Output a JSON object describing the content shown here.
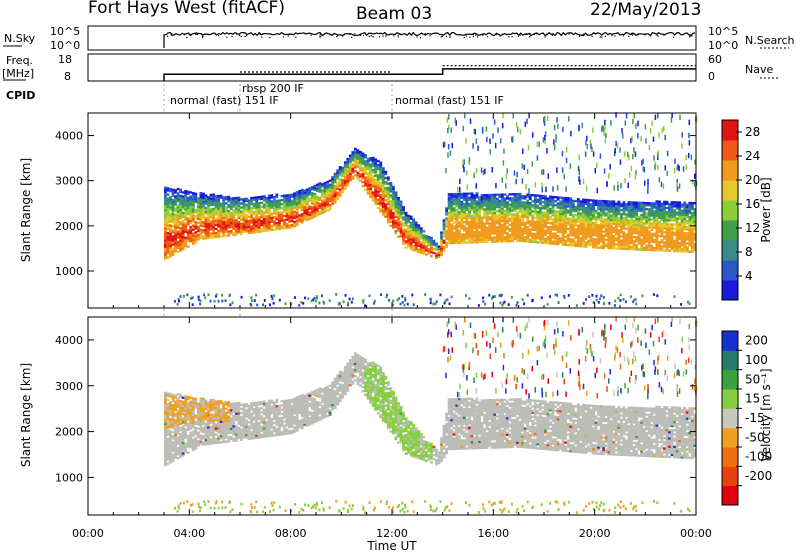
{
  "header": {
    "station": "Fort Hays West (fitACF)",
    "beam": "Beam 03",
    "date": "22/May/2013"
  },
  "noise_panel": {
    "left_label": "N.Sky",
    "left_ticks": [
      "10^5",
      "10^0"
    ],
    "right_ticks": [
      "10^5",
      "10^0"
    ],
    "right_label": "N.Search"
  },
  "freq_panel": {
    "left_label_line1": "Freq.",
    "left_label_line2": "[MHz]",
    "left_ticks": [
      "18",
      "8"
    ],
    "right_ticks": [
      "60",
      "0"
    ],
    "right_label": "Nave",
    "freq_steps": [
      {
        "start_h": 3.0,
        "end_h": 14.0,
        "value": 10.5
      },
      {
        "start_h": 14.0,
        "end_h": 24.0,
        "value": 12.5
      }
    ],
    "nave_steps": [
      {
        "start_h": 6.0,
        "end_h": 12.0,
        "value": 20
      },
      {
        "start_h": 14.0,
        "end_h": 24.0,
        "value": 34
      }
    ]
  },
  "cpid": {
    "label": "CPID",
    "entries": [
      {
        "text": "normal (fast) 151 IF",
        "start_h": 3.0
      },
      {
        "text": "rbsp 200 IF",
        "start_h": 6.0
      },
      {
        "text": "normal (fast) 151 IF",
        "start_h": 12.0
      }
    ]
  },
  "chart_data": [
    {
      "type": "heatmap",
      "name": "power",
      "ylabel": "Slant Range [km]",
      "yticks": [
        "1000",
        "2000",
        "3000",
        "4000"
      ],
      "ylim": [
        180,
        4500
      ],
      "xlim": [
        0,
        24
      ],
      "colorbar": {
        "label": "Power [dB]",
        "ticks": [
          "4",
          "8",
          "12",
          "16",
          "20",
          "24",
          "28"
        ],
        "range": [
          0,
          30
        ]
      },
      "echo_band": [
        {
          "t": 3.0,
          "lo": 1250,
          "hi": 2850
        },
        {
          "t": 4.5,
          "lo": 1700,
          "hi": 2700
        },
        {
          "t": 6.0,
          "lo": 1800,
          "hi": 2600
        },
        {
          "t": 8.0,
          "lo": 1950,
          "hi": 2700
        },
        {
          "t": 9.5,
          "lo": 2350,
          "hi": 3000
        },
        {
          "t": 10.5,
          "lo": 3100,
          "hi": 3700
        },
        {
          "t": 11.5,
          "lo": 2300,
          "hi": 3400
        },
        {
          "t": 12.5,
          "lo": 1500,
          "hi": 2300
        },
        {
          "t": 13.8,
          "lo": 1250,
          "hi": 1550
        },
        {
          "t": 14.2,
          "lo": 1600,
          "hi": 2700
        },
        {
          "t": 17.0,
          "lo": 1650,
          "hi": 2700
        },
        {
          "t": 20.0,
          "lo": 1500,
          "hi": 2550
        },
        {
          "t": 24.0,
          "lo": 1400,
          "hi": 2500
        }
      ]
    },
    {
      "type": "heatmap",
      "name": "velocity",
      "ylabel": "Slant Range [km]",
      "xlabel": "Time UT",
      "yticks": [
        "1000",
        "2000",
        "3000",
        "4000"
      ],
      "xticks": [
        "00:00",
        "04:00",
        "08:00",
        "12:00",
        "16:00",
        "20:00",
        "00:00"
      ],
      "xlim": [
        0,
        24
      ],
      "ylim": [
        180,
        4500
      ],
      "colorbar": {
        "label": "Velocity [m s⁻¹]",
        "ticks": [
          "200",
          "100",
          "50",
          "15",
          "-15",
          "-50",
          "-100",
          "-200"
        ]
      }
    }
  ],
  "colors": {
    "power_scale": [
      "#1a1adc",
      "#2858c8",
      "#3a8a8a",
      "#3fa04a",
      "#8ccd3a",
      "#e6c82a",
      "#f09a1e",
      "#f05a14",
      "#e01414"
    ],
    "velocity_scale": [
      "#1a2fd0",
      "#287a6a",
      "#3aa040",
      "#86d040",
      "#c8c8c0",
      "#f0a020",
      "#f07010",
      "#e84010",
      "#e00010"
    ],
    "ground_scatter": "#bdbdb8"
  }
}
